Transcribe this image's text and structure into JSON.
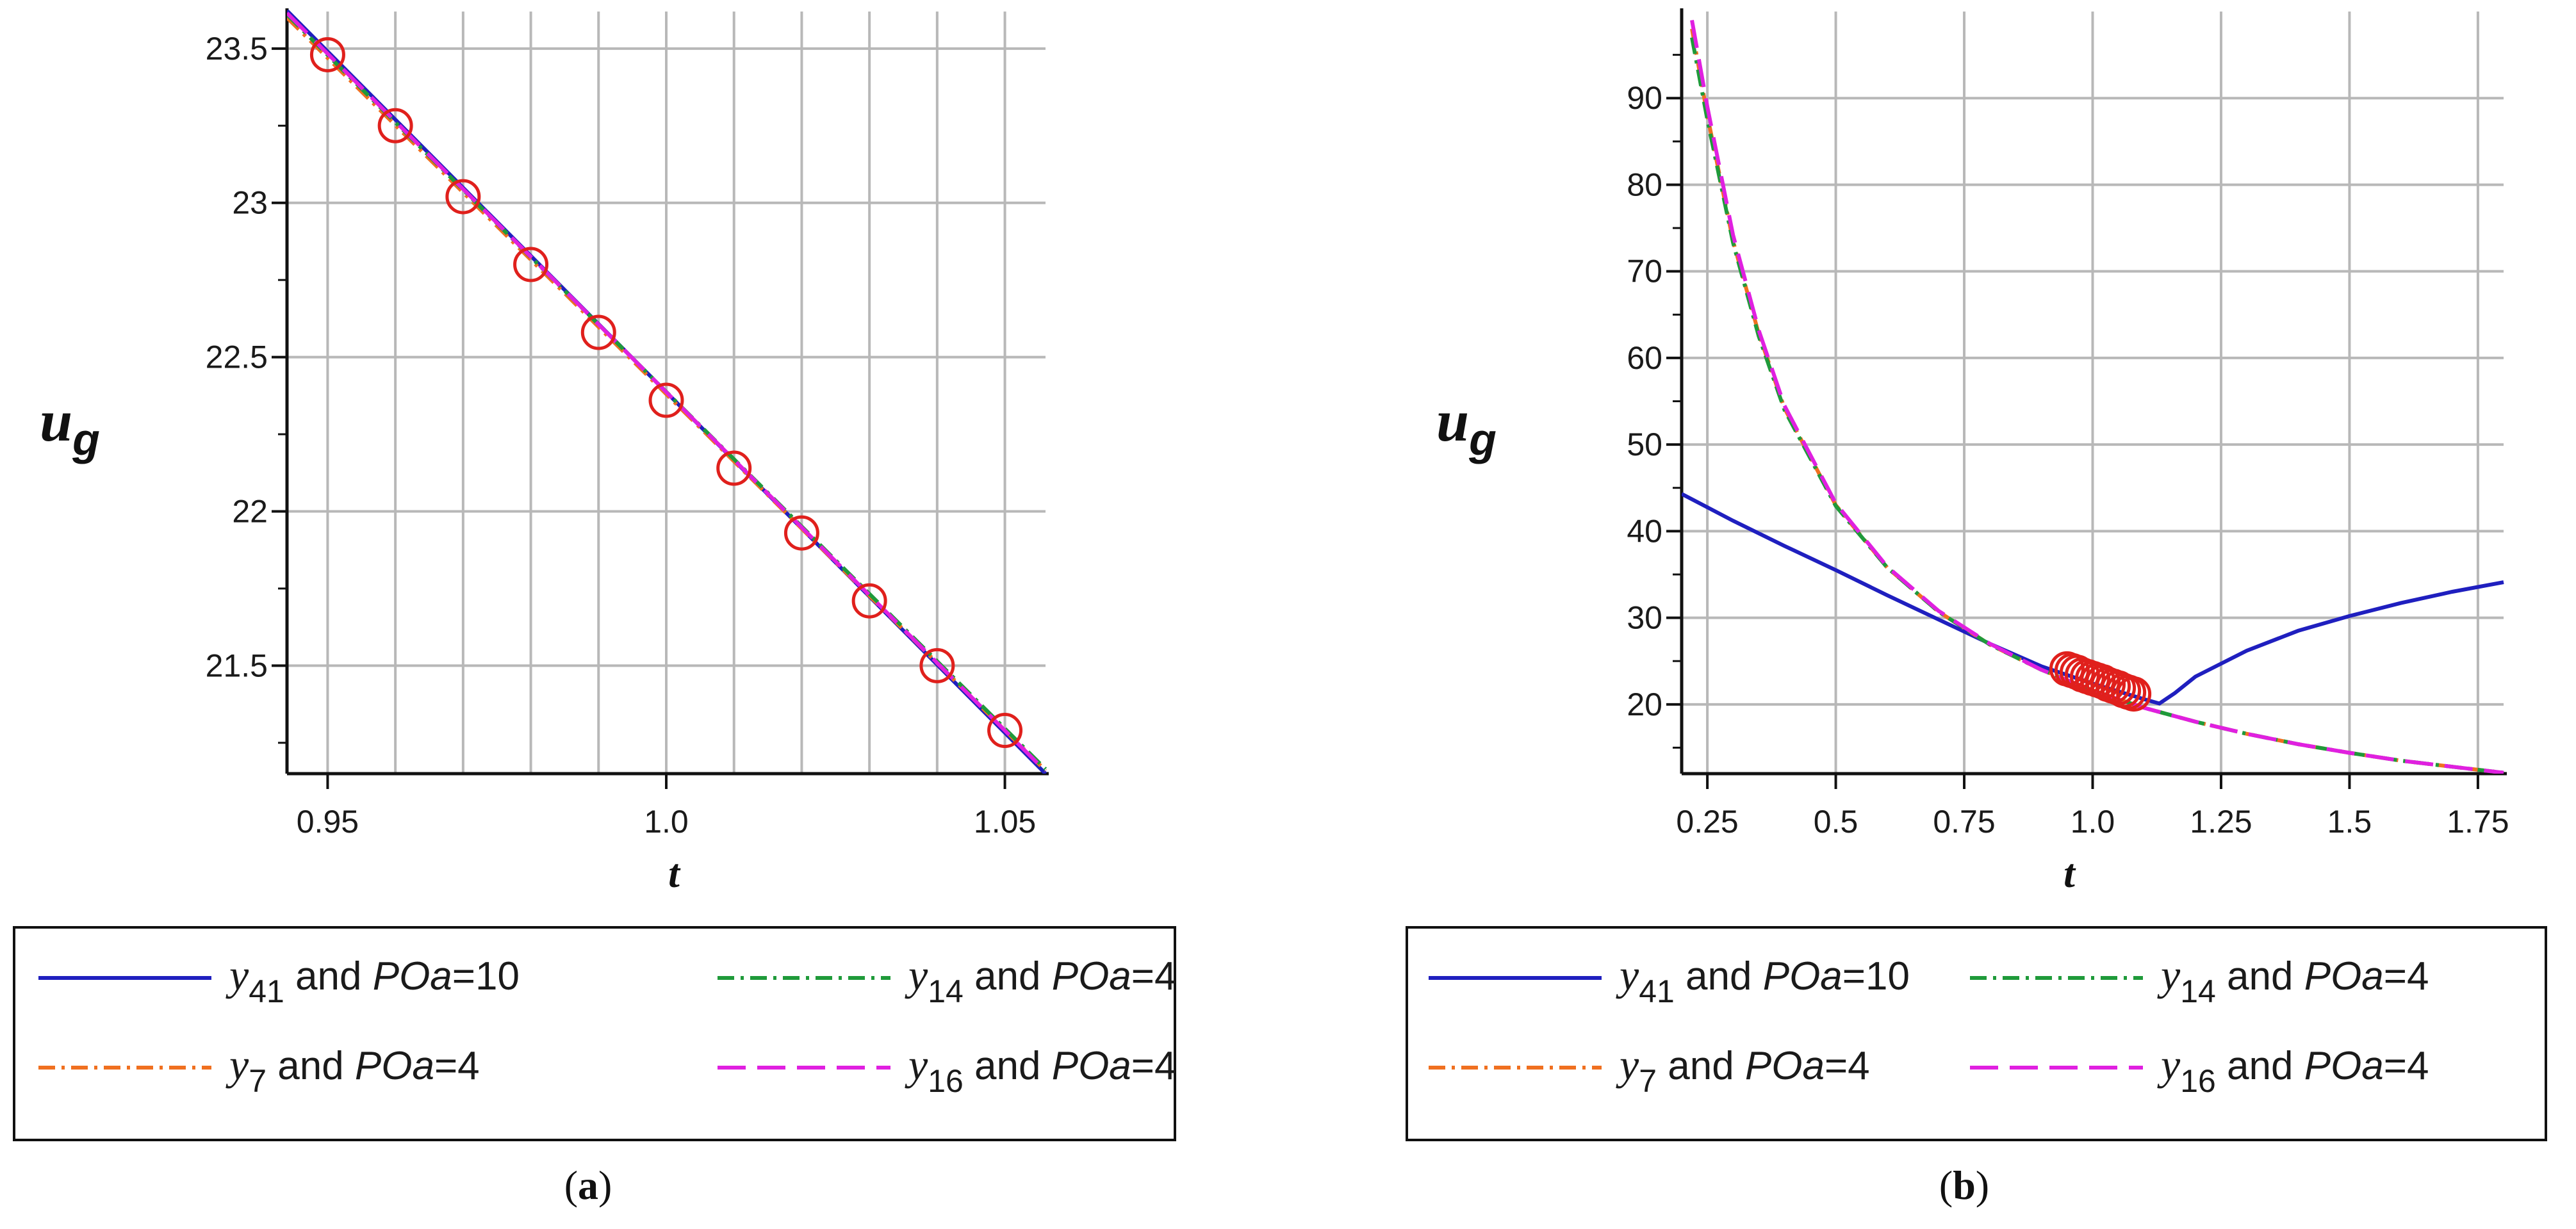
{
  "chart_data": [
    {
      "id": "a",
      "type": "line",
      "caption_letter": "a",
      "xlabel": "t",
      "ylabel_main": "u",
      "ylabel_sub": "g",
      "xlim": [
        0.944,
        1.056
      ],
      "ylim": [
        21.15,
        23.62
      ],
      "xticks": [
        0.95,
        1.0,
        1.05
      ],
      "xtick_labels": [
        "0.95",
        "1.0",
        "1.05"
      ],
      "xgrid": [
        0.95,
        0.96,
        0.97,
        0.98,
        0.99,
        1.0,
        1.01,
        1.02,
        1.03,
        1.04,
        1.05
      ],
      "yticks": [
        21.5,
        22,
        22.5,
        23,
        23.5
      ],
      "ytick_labels": [
        "21.5",
        "22",
        "22.5",
        "23",
        "23.5"
      ],
      "yminor": [
        21.25,
        21.75,
        22.25,
        22.75,
        23.25
      ],
      "series": [
        {
          "name": "y41 and POa=10",
          "color": "#1f1fbf",
          "dash": "solid",
          "points": [
            [
              0.944,
              23.623
            ],
            [
              1.056,
              21.15
            ]
          ]
        },
        {
          "name": "y14 and POa=4",
          "color": "#1f9a3a",
          "dash": "dashdot",
          "points": [
            [
              0.944,
              23.61
            ],
            [
              1.056,
              21.165
            ]
          ]
        },
        {
          "name": "y7 and POa=4",
          "color": "#f07020",
          "dash": "dashdot",
          "points": [
            [
              0.944,
              23.6
            ],
            [
              1.056,
              21.16
            ]
          ]
        },
        {
          "name": "y16 and POa=4",
          "color": "#e020e0",
          "dash": "dashed",
          "points": [
            [
              0.944,
              23.615
            ],
            [
              1.056,
              21.158
            ]
          ]
        }
      ],
      "markers": {
        "color": "#e0201c",
        "points": [
          [
            0.95,
            23.48
          ],
          [
            0.96,
            23.25
          ],
          [
            0.97,
            23.02
          ],
          [
            0.98,
            22.8
          ],
          [
            0.99,
            22.58
          ],
          [
            1.0,
            22.36
          ],
          [
            1.01,
            22.14
          ],
          [
            1.02,
            21.93
          ],
          [
            1.03,
            21.71
          ],
          [
            1.04,
            21.5
          ],
          [
            1.05,
            21.29
          ]
        ]
      },
      "legend": [
        {
          "sym": "y",
          "sub": "41",
          "text": " and ",
          "param": "POa",
          "value": "=10",
          "color": "#1f1fbf",
          "dash": "solid"
        },
        {
          "sym": "y",
          "sub": "14",
          "text": " and ",
          "param": "POa",
          "value": "=4",
          "color": "#1f9a3a",
          "dash": "dashdot"
        },
        {
          "sym": "y",
          "sub": "7",
          "text": " and ",
          "param": "POa",
          "value": "=4",
          "color": "#f07020",
          "dash": "dashdot"
        },
        {
          "sym": "y",
          "sub": "16",
          "text": " and ",
          "param": "POa",
          "value": "=4",
          "color": "#e020e0",
          "dash": "dashed"
        }
      ]
    },
    {
      "id": "b",
      "type": "line",
      "caption_letter": "b",
      "xlabel": "t",
      "ylabel_main": "u",
      "ylabel_sub": "g",
      "xlim": [
        0.2,
        1.8
      ],
      "ylim": [
        12,
        100
      ],
      "xticks": [
        0.25,
        0.5,
        0.75,
        1.0,
        1.25,
        1.5,
        1.75
      ],
      "xtick_labels": [
        "0.25",
        "0.5",
        "0.75",
        "1.0",
        "1.25",
        "1.5",
        "1.75"
      ],
      "xgrid": [
        0.25,
        0.5,
        0.75,
        1.0,
        1.25,
        1.5,
        1.75
      ],
      "yticks": [
        20,
        30,
        40,
        50,
        60,
        70,
        80,
        90
      ],
      "ytick_labels": [
        "20",
        "30",
        "40",
        "50",
        "60",
        "70",
        "80",
        "90"
      ],
      "yminor": [
        15,
        25,
        35,
        45,
        55,
        65,
        75,
        85,
        95
      ],
      "series": [
        {
          "name": "y41 and POa=10",
          "color": "#1f1fbf",
          "dash": "solid",
          "points": [
            [
              0.2,
              44.3
            ],
            [
              0.3,
              41.2
            ],
            [
              0.4,
              38.3
            ],
            [
              0.5,
              35.5
            ],
            [
              0.6,
              32.6
            ],
            [
              0.7,
              29.8
            ],
            [
              0.8,
              27.0
            ],
            [
              0.9,
              24.4
            ],
            [
              1.0,
              22.4
            ],
            [
              1.1,
              20.6
            ],
            [
              1.13,
              20.1
            ],
            [
              1.16,
              21.3
            ],
            [
              1.2,
              23.2
            ],
            [
              1.3,
              26.2
            ],
            [
              1.4,
              28.5
            ],
            [
              1.5,
              30.2
            ],
            [
              1.6,
              31.7
            ],
            [
              1.7,
              33.0
            ],
            [
              1.8,
              34.1
            ]
          ]
        },
        {
          "name": "y14 and POa=4",
          "color": "#1f9a3a",
          "dash": "dashdot",
          "points": [
            [
              0.22,
              97.0
            ],
            [
              0.25,
              87.5
            ],
            [
              0.3,
              73.3
            ],
            [
              0.35,
              62.5
            ],
            [
              0.4,
              54.0
            ],
            [
              0.5,
              42.9
            ],
            [
              0.6,
              35.8
            ],
            [
              0.7,
              30.7
            ],
            [
              0.8,
              26.9
            ],
            [
              0.9,
              24.0
            ],
            [
              1.0,
              21.6
            ],
            [
              1.1,
              19.6
            ],
            [
              1.2,
              18.0
            ],
            [
              1.3,
              16.6
            ],
            [
              1.4,
              15.4
            ],
            [
              1.5,
              14.4
            ],
            [
              1.6,
              13.5
            ],
            [
              1.7,
              12.8
            ],
            [
              1.8,
              12.1
            ]
          ]
        },
        {
          "name": "y7 and POa=4",
          "color": "#f07020",
          "dash": "dashdot",
          "points": [
            [
              0.22,
              98.0
            ],
            [
              0.25,
              88.0
            ],
            [
              0.3,
              73.5
            ],
            [
              0.35,
              62.8
            ],
            [
              0.4,
              54.2
            ],
            [
              0.5,
              43.0
            ],
            [
              0.6,
              35.8
            ],
            [
              0.7,
              30.7
            ],
            [
              0.8,
              26.9
            ],
            [
              0.9,
              24.0
            ],
            [
              1.0,
              21.6
            ],
            [
              1.1,
              19.6
            ],
            [
              1.2,
              18.0
            ],
            [
              1.3,
              16.6
            ],
            [
              1.4,
              15.4
            ],
            [
              1.5,
              14.4
            ],
            [
              1.6,
              13.5
            ],
            [
              1.7,
              12.8
            ],
            [
              1.8,
              12.1
            ]
          ]
        },
        {
          "name": "y16 and POa=4",
          "color": "#e020e0",
          "dash": "dashed",
          "points": [
            [
              0.22,
              99.0
            ],
            [
              0.25,
              89.0
            ],
            [
              0.3,
              74.2
            ],
            [
              0.35,
              63.2
            ],
            [
              0.4,
              54.5
            ],
            [
              0.5,
              43.2
            ],
            [
              0.6,
              35.9
            ],
            [
              0.7,
              30.8
            ],
            [
              0.8,
              27.0
            ],
            [
              0.9,
              24.0
            ],
            [
              1.0,
              21.6
            ],
            [
              1.1,
              19.6
            ],
            [
              1.2,
              18.0
            ],
            [
              1.3,
              16.6
            ],
            [
              1.4,
              15.4
            ],
            [
              1.5,
              14.4
            ],
            [
              1.6,
              13.5
            ],
            [
              1.7,
              12.8
            ],
            [
              1.8,
              12.1
            ]
          ]
        }
      ],
      "markers": {
        "color": "#e0201c",
        "points": [
          [
            0.95,
            24.1
          ],
          [
            0.96,
            23.9
          ],
          [
            0.97,
            23.7
          ],
          [
            0.98,
            23.4
          ],
          [
            0.99,
            23.2
          ],
          [
            1.0,
            23.0
          ],
          [
            1.01,
            22.8
          ],
          [
            1.02,
            22.6
          ],
          [
            1.03,
            22.3
          ],
          [
            1.04,
            22.1
          ],
          [
            1.05,
            21.9
          ],
          [
            1.06,
            21.6
          ],
          [
            1.07,
            21.4
          ],
          [
            1.08,
            21.2
          ]
        ]
      },
      "legend": [
        {
          "sym": "y",
          "sub": "41",
          "text": " and ",
          "param": "POa",
          "value": "=10",
          "color": "#1f1fbf",
          "dash": "solid"
        },
        {
          "sym": "y",
          "sub": "14",
          "text": " and ",
          "param": "POa",
          "value": "=4",
          "color": "#1f9a3a",
          "dash": "dashdot"
        },
        {
          "sym": "y",
          "sub": "7",
          "text": " and ",
          "param": "POa",
          "value": "=4",
          "color": "#f07020",
          "dash": "dashdot"
        },
        {
          "sym": "y",
          "sub": "16",
          "text": " and ",
          "param": "POa",
          "value": "=4",
          "color": "#e020e0",
          "dash": "dashed"
        }
      ]
    }
  ]
}
